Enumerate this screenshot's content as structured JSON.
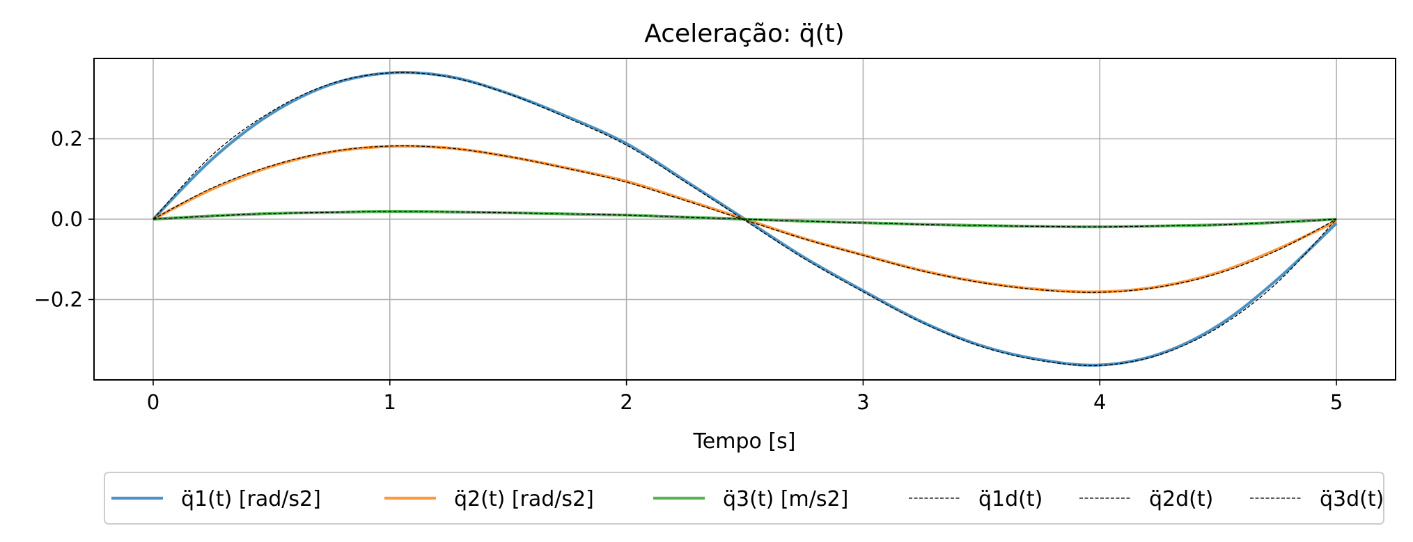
{
  "chart_data": {
    "type": "line",
    "title": "Aceleração: q̈(t)",
    "xlabel": "Tempo [s]",
    "ylabel": "",
    "xlim": [
      -0.25,
      5.25
    ],
    "ylim": [
      -0.4,
      0.4
    ],
    "xticks": [
      0,
      1,
      2,
      3,
      4,
      5
    ],
    "xtick_labels": [
      "0",
      "1",
      "2",
      "3",
      "4",
      "5"
    ],
    "yticks": [
      -0.2,
      0.0,
      0.2
    ],
    "ytick_labels": [
      "−0.2",
      "0.0",
      "0.2"
    ],
    "grid": true,
    "legend_position": "below",
    "series": [
      {
        "name": "q̈1(t) [rad/s2]",
        "style": "solid",
        "color": "#1f77b4",
        "x": [
          0,
          0.25,
          0.5,
          0.75,
          1,
          1.25,
          1.5,
          1.75,
          2,
          2.25,
          2.5,
          2.75,
          3,
          3.25,
          3.5,
          3.75,
          4,
          4.25,
          4.5,
          4.75,
          5
        ],
        "y": [
          0,
          0.15,
          0.263,
          0.335,
          0.364,
          0.355,
          0.313,
          0.255,
          0.188,
          0.095,
          0,
          -0.095,
          -0.178,
          -0.256,
          -0.315,
          -0.35,
          -0.363,
          -0.336,
          -0.265,
          -0.15,
          -0.01
        ]
      },
      {
        "name": "q̈2(t) [rad/s2]",
        "style": "solid",
        "color": "#ff7f0e",
        "x": [
          0,
          0.25,
          0.5,
          0.75,
          1,
          1.25,
          1.5,
          1.75,
          2,
          2.25,
          2.5,
          2.75,
          3,
          3.25,
          3.5,
          3.75,
          4,
          4.25,
          4.5,
          4.75,
          5
        ],
        "y": [
          0,
          0.075,
          0.131,
          0.167,
          0.181,
          0.177,
          0.156,
          0.127,
          0.094,
          0.048,
          0,
          -0.048,
          -0.089,
          -0.128,
          -0.157,
          -0.175,
          -0.181,
          -0.168,
          -0.133,
          -0.075,
          -0.005
        ]
      },
      {
        "name": "q̈3(t) [m/s2]",
        "style": "solid",
        "color": "#2ca02c",
        "x": [
          0,
          0.25,
          0.5,
          0.75,
          1,
          1.25,
          1.5,
          1.75,
          2,
          2.25,
          2.5,
          2.75,
          3,
          3.25,
          3.5,
          3.75,
          4,
          4.25,
          4.5,
          4.75,
          5
        ],
        "y": [
          0,
          0.008,
          0.014,
          0.017,
          0.019,
          0.018,
          0.016,
          0.013,
          0.01,
          0.005,
          0,
          -0.005,
          -0.009,
          -0.013,
          -0.016,
          -0.018,
          -0.019,
          -0.017,
          -0.014,
          -0.008,
          0
        ]
      },
      {
        "name": "q̈1d(t)",
        "style": "dashed",
        "color": "#000000",
        "x": [
          0,
          0.25,
          0.5,
          0.75,
          1,
          1.25,
          1.5,
          1.75,
          2,
          2.25,
          2.5,
          2.75,
          3,
          3.25,
          3.5,
          3.75,
          4,
          4.25,
          4.5,
          4.75,
          5
        ],
        "y": [
          0,
          0.16,
          0.268,
          0.337,
          0.364,
          0.354,
          0.312,
          0.252,
          0.184,
          0.092,
          -0.003,
          -0.098,
          -0.181,
          -0.258,
          -0.317,
          -0.352,
          -0.364,
          -0.338,
          -0.27,
          -0.158,
          0
        ]
      },
      {
        "name": "q̈2d(t)",
        "style": "dashed",
        "color": "#000000",
        "x": [
          0,
          0.25,
          0.5,
          0.75,
          1,
          1.25,
          1.5,
          1.75,
          2,
          2.25,
          2.5,
          2.75,
          3,
          3.25,
          3.5,
          3.75,
          4,
          4.25,
          4.5,
          4.75,
          5
        ],
        "y": [
          0,
          0.078,
          0.133,
          0.168,
          0.182,
          0.177,
          0.156,
          0.126,
          0.092,
          0.046,
          -0.002,
          -0.049,
          -0.09,
          -0.129,
          -0.158,
          -0.176,
          -0.182,
          -0.169,
          -0.135,
          -0.078,
          0
        ]
      },
      {
        "name": "q̈3d(t)",
        "style": "dashed",
        "color": "#000000",
        "x": [
          0,
          0.25,
          0.5,
          0.75,
          1,
          1.25,
          1.5,
          1.75,
          2,
          2.25,
          2.5,
          2.75,
          3,
          3.25,
          3.5,
          3.75,
          4,
          4.25,
          4.5,
          4.75,
          5
        ],
        "y": [
          0,
          0.008,
          0.014,
          0.017,
          0.019,
          0.018,
          0.016,
          0.013,
          0.01,
          0.005,
          0,
          -0.005,
          -0.009,
          -0.013,
          -0.016,
          -0.018,
          -0.019,
          -0.017,
          -0.014,
          -0.008,
          0
        ]
      }
    ]
  }
}
